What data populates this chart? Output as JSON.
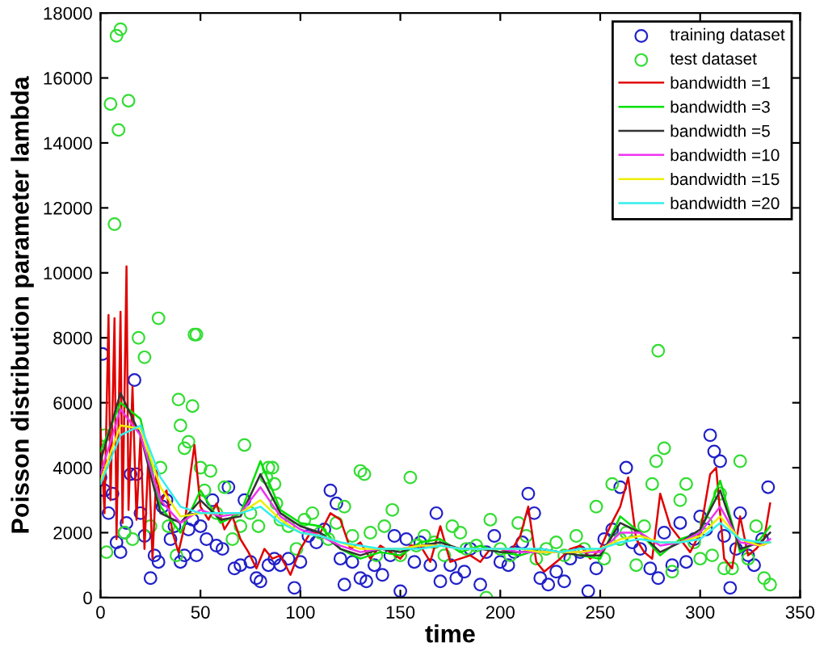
{
  "chart_data": {
    "type": "line",
    "xlabel": "time",
    "ylabel": "Poisson distribution parameter lambda",
    "xlim": [
      0,
      350
    ],
    "xticks": [
      0,
      50,
      100,
      150,
      200,
      250,
      300,
      350
    ],
    "ylim": [
      0,
      18000
    ],
    "yticks": [
      0,
      2000,
      4000,
      6000,
      8000,
      10000,
      12000,
      14000,
      16000,
      18000
    ],
    "grid": false,
    "legend": "top right",
    "x": [
      0,
      10,
      20,
      30,
      40,
      50,
      60,
      70,
      80,
      90,
      100,
      110,
      120,
      130,
      140,
      150,
      160,
      170,
      180,
      190,
      200,
      210,
      220,
      230,
      240,
      250,
      260,
      270,
      280,
      290,
      300,
      310,
      320,
      330,
      335
    ],
    "series": [
      {
        "name": "training dataset",
        "type": "scatter",
        "marker": "circle",
        "color": "#2020c8",
        "x": [
          0,
          1,
          2,
          4,
          6,
          8,
          10,
          12,
          13,
          15,
          17,
          18,
          20,
          22,
          25,
          27,
          29,
          31,
          33,
          35,
          37,
          40,
          42,
          44,
          46,
          48,
          50,
          53,
          56,
          58,
          61,
          64,
          67,
          70,
          72,
          75,
          78,
          80,
          84,
          87,
          90,
          94,
          97,
          100,
          104,
          108,
          112,
          115,
          118,
          120,
          122,
          126,
          130,
          133,
          137,
          141,
          145,
          147,
          150,
          153,
          157,
          160,
          165,
          168,
          170,
          175,
          178,
          182,
          185,
          190,
          193,
          197,
          200,
          204,
          207,
          211,
          214,
          217,
          220,
          224,
          228,
          232,
          235,
          240,
          244,
          248,
          252,
          256,
          260,
          263,
          266,
          270,
          275,
          279,
          282,
          286,
          290,
          293,
          297,
          300,
          303,
          305,
          307,
          310,
          312,
          315,
          318,
          320,
          324,
          327,
          331,
          334
        ],
        "values": [
          3700,
          7500,
          3300,
          2600,
          3200,
          1700,
          1400,
          2000,
          2300,
          3800,
          6700,
          3800,
          2600,
          1900,
          600,
          1300,
          1100,
          2800,
          3000,
          1800,
          2200,
          1100,
          1300,
          2100,
          2400,
          1300,
          2200,
          1800,
          3000,
          1600,
          1500,
          3400,
          900,
          1000,
          3000,
          1100,
          600,
          500,
          1000,
          1200,
          1000,
          1200,
          300,
          1100,
          1900,
          1700,
          2100,
          3300,
          2900,
          1200,
          400,
          1100,
          600,
          500,
          1000,
          700,
          1300,
          1900,
          200,
          1800,
          1100,
          1700,
          1000,
          2600,
          500,
          1000,
          600,
          800,
          1500,
          400,
          1400,
          1900,
          1100,
          1000,
          1400,
          1700,
          3200,
          2600,
          600,
          400,
          800,
          500,
          1200,
          1400,
          200,
          900,
          1800,
          2100,
          3400,
          4000,
          1700,
          1500,
          900,
          600,
          2000,
          1000,
          2300,
          1100,
          1800,
          2500,
          2100,
          5000,
          4500,
          4200,
          1900,
          300,
          1500,
          2600,
          1300,
          1000,
          1800,
          3400
        ]
      },
      {
        "name": "test dataset",
        "type": "scatter",
        "marker": "circle",
        "color": "#33dd33",
        "x": [
          2,
          3,
          5,
          7,
          8,
          9,
          10,
          12,
          14,
          16,
          19,
          22,
          25,
          29,
          30,
          34,
          38,
          39,
          40,
          42,
          44,
          46,
          47,
          48,
          50,
          52,
          55,
          58,
          62,
          66,
          70,
          72,
          75,
          79,
          83,
          84,
          86,
          87,
          88,
          90,
          94,
          98,
          102,
          106,
          110,
          114,
          118,
          122,
          126,
          130,
          132,
          135,
          138,
          142,
          146,
          150,
          155,
          158,
          162,
          167,
          172,
          176,
          180,
          183,
          188,
          193,
          195,
          200,
          205,
          209,
          213,
          218,
          223,
          228,
          232,
          238,
          242,
          248,
          252,
          256,
          260,
          263,
          268,
          272,
          276,
          278,
          279,
          282,
          286,
          290,
          293,
          297,
          300,
          303,
          306,
          310,
          312,
          316,
          320,
          324,
          328,
          332,
          335
        ],
        "values": [
          5000,
          1400,
          15200,
          11500,
          17300,
          14400,
          17500,
          2000,
          15300,
          1800,
          8000,
          7400,
          2200,
          8600,
          4000,
          2200,
          1300,
          6100,
          5300,
          4600,
          4800,
          5900,
          8100,
          8100,
          4000,
          3300,
          3900,
          2600,
          3400,
          1800,
          2200,
          4700,
          2600,
          2200,
          3700,
          4000,
          4000,
          3500,
          2900,
          2400,
          2200,
          1500,
          2400,
          2600,
          2000,
          1800,
          2300,
          2800,
          1900,
          3900,
          3800,
          2000,
          1300,
          2200,
          2700,
          1300,
          3700,
          1600,
          1900,
          1700,
          1300,
          2200,
          2000,
          1500,
          1600,
          0,
          2400,
          1500,
          1300,
          2300,
          1900,
          1200,
          1500,
          1700,
          1300,
          1900,
          1500,
          2800,
          1200,
          3500,
          1800,
          2000,
          1000,
          2200,
          3500,
          4200,
          7600,
          4600,
          800,
          3000,
          3500,
          1700,
          1200,
          2300,
          1300,
          3200,
          900,
          900,
          4200,
          1200,
          2200,
          600,
          400
        ]
      },
      {
        "name": "bandwidth =1",
        "type": "line",
        "color": "#e00000",
        "x": [
          0,
          2,
          4,
          5,
          7,
          8,
          10,
          11,
          13,
          14,
          16,
          18,
          20,
          22,
          24,
          26,
          28,
          30,
          33,
          36,
          39,
          42,
          45,
          47,
          50,
          54,
          58,
          62,
          66,
          70,
          74,
          78,
          82,
          86,
          90,
          95,
          100,
          105,
          110,
          115,
          120,
          125,
          130,
          135,
          140,
          145,
          150,
          155,
          160,
          165,
          170,
          175,
          180,
          185,
          190,
          195,
          200,
          205,
          210,
          214,
          218,
          222,
          226,
          230,
          235,
          240,
          245,
          250,
          255,
          260,
          264,
          268,
          272,
          276,
          280,
          285,
          290,
          295,
          300,
          305,
          308,
          312,
          316,
          320,
          324,
          328,
          332,
          335
        ],
        "values": [
          5200,
          2600,
          8700,
          3000,
          8600,
          1800,
          8800,
          2300,
          10200,
          2700,
          6500,
          2400,
          5000,
          1500,
          4500,
          1200,
          3900,
          2900,
          3300,
          2000,
          1400,
          2200,
          3800,
          4700,
          2800,
          2400,
          2900,
          2100,
          2500,
          1800,
          1400,
          900,
          1500,
          1200,
          1300,
          700,
          1500,
          2000,
          2000,
          2600,
          2400,
          1500,
          1700,
          1200,
          1600,
          1400,
          1200,
          1600,
          1600,
          1100,
          2200,
          1100,
          1200,
          1300,
          1100,
          1500,
          1500,
          1400,
          1900,
          2800,
          1100,
          800,
          1000,
          1200,
          1500,
          1600,
          1200,
          1500,
          2200,
          2800,
          3700,
          1800,
          1400,
          1200,
          3200,
          2200,
          1800,
          1400,
          2000,
          3800,
          4000,
          1200,
          900,
          2500,
          1300,
          1500,
          1800,
          2900
        ]
      },
      {
        "name": "bandwidth =3",
        "type": "line",
        "color": "#00e000",
        "values": [
          4500,
          6000,
          5500,
          2800,
          2000,
          3300,
          2300,
          2600,
          4200,
          2700,
          2300,
          2200,
          1500,
          1200,
          1400,
          1300,
          1700,
          1800,
          1400,
          1600,
          1400,
          1300,
          1500,
          1400,
          1300,
          1200,
          2500,
          2000,
          1300,
          1800,
          2000,
          3600,
          1400,
          1800,
          2200
        ]
      },
      {
        "name": "bandwidth =5",
        "type": "line",
        "color": "#333333",
        "values": [
          4200,
          6300,
          5000,
          2600,
          2300,
          3000,
          2400,
          2500,
          3800,
          2600,
          2200,
          2000,
          1500,
          1300,
          1500,
          1400,
          1600,
          1700,
          1500,
          1500,
          1400,
          1400,
          1500,
          1400,
          1300,
          1300,
          2300,
          2000,
          1400,
          1700,
          2100,
          3300,
          1500,
          1700,
          2000
        ]
      },
      {
        "name": "bandwidth =10",
        "type": "line",
        "color": "#ee33ee",
        "values": [
          3800,
          5800,
          5000,
          3000,
          2300,
          2700,
          2500,
          2600,
          3400,
          2500,
          2100,
          1900,
          1600,
          1400,
          1500,
          1500,
          1600,
          1600,
          1500,
          1500,
          1500,
          1400,
          1400,
          1400,
          1400,
          1400,
          2000,
          2000,
          1600,
          1700,
          2000,
          2800,
          1700,
          1600,
          1800
        ]
      },
      {
        "name": "bandwidth =15",
        "type": "line",
        "color": "#eeee00",
        "values": [
          3600,
          5300,
          5200,
          3400,
          2500,
          2600,
          2600,
          2600,
          3000,
          2400,
          2000,
          1900,
          1700,
          1500,
          1500,
          1500,
          1600,
          1600,
          1500,
          1500,
          1500,
          1500,
          1400,
          1400,
          1400,
          1500,
          1800,
          1900,
          1700,
          1700,
          1900,
          2500,
          1800,
          1600,
          1700
        ]
      },
      {
        "name": "bandwidth =20",
        "type": "line",
        "color": "#33eeee",
        "values": [
          3500,
          5000,
          5300,
          3700,
          2800,
          2600,
          2600,
          2600,
          2800,
          2300,
          2000,
          1900,
          1700,
          1600,
          1500,
          1500,
          1500,
          1600,
          1500,
          1500,
          1500,
          1500,
          1500,
          1400,
          1500,
          1500,
          1700,
          1800,
          1700,
          1700,
          1800,
          2300,
          1800,
          1700,
          1700
        ]
      }
    ]
  }
}
